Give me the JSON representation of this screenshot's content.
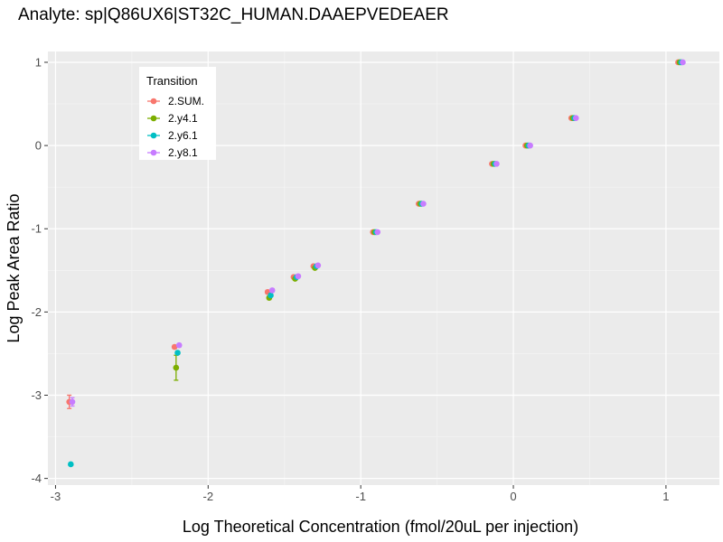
{
  "chart_data": {
    "type": "scatter",
    "title": "Analyte: sp|Q86UX6|ST32C_HUMAN.DAAEPVEDEAER",
    "xlabel": "Log Theoretical Concentration (fmol/20uL per injection)",
    "ylabel": "Log Peak Area Ratio",
    "xlim": [
      -3.05,
      1.35
    ],
    "ylim": [
      -4.08,
      1.13
    ],
    "x_ticks": [
      -3,
      -2,
      -1,
      0,
      1
    ],
    "y_ticks": [
      -4,
      -3,
      -2,
      -1,
      0,
      1
    ],
    "x_tick_labels": [
      "-3",
      "-2",
      "-1",
      "0",
      "1"
    ],
    "y_tick_labels": [
      "-4",
      "-3",
      "-2",
      "-1",
      "0",
      "1"
    ],
    "grid": true,
    "legend": {
      "title": "Transition",
      "position": "top-left"
    },
    "series": [
      {
        "name": "2.SUM.",
        "color": "#F8766D",
        "x": [
          -2.91,
          -2.22,
          -1.61,
          -1.44,
          -1.31,
          -0.92,
          -0.62,
          -0.14,
          0.08,
          0.38,
          1.08
        ],
        "y": [
          -3.08,
          -2.42,
          -1.76,
          -1.58,
          -1.45,
          -1.04,
          -0.7,
          -0.22,
          0.0,
          0.33,
          1.0
        ],
        "yerr": [
          0.08,
          0.02,
          0.02,
          0.01,
          0.01,
          0.01,
          0.01,
          0.01,
          0.01,
          0.01,
          0.0
        ]
      },
      {
        "name": "2.y4.1",
        "color": "#7CAE00",
        "x": [
          -2.21,
          -1.6,
          -1.43,
          -1.3,
          -0.91,
          -0.61,
          -0.13,
          0.09,
          0.39,
          1.09
        ],
        "y": [
          -2.67,
          -1.83,
          -1.6,
          -1.47,
          -1.04,
          -0.7,
          -0.22,
          0.0,
          0.33,
          1.0
        ],
        "yerr": [
          0.15,
          0.02,
          0.01,
          0.01,
          0.01,
          0.01,
          0.01,
          0.01,
          0.01,
          0.0
        ]
      },
      {
        "name": "2.y6.1",
        "color": "#00BFC4",
        "x": [
          -2.9,
          -2.2,
          -1.59,
          -1.42,
          -1.29,
          -0.9,
          -0.6,
          -0.12,
          0.1,
          0.4,
          1.1
        ],
        "y": [
          -3.83,
          -2.49,
          -1.8,
          -1.58,
          -1.45,
          -1.04,
          -0.7,
          -0.22,
          0.0,
          0.33,
          1.0
        ],
        "yerr": [
          0.0,
          0.02,
          0.02,
          0.01,
          0.01,
          0.01,
          0.01,
          0.01,
          0.01,
          0.01,
          0.0
        ]
      },
      {
        "name": "2.y8.1",
        "color": "#C77CFF",
        "x": [
          -2.89,
          -2.19,
          -1.58,
          -1.41,
          -1.28,
          -0.89,
          -0.59,
          -0.11,
          0.11,
          0.41,
          1.11
        ],
        "y": [
          -3.08,
          -2.4,
          -1.74,
          -1.57,
          -1.44,
          -1.04,
          -0.7,
          -0.22,
          0.0,
          0.33,
          1.0
        ],
        "yerr": [
          0.05,
          0.02,
          0.02,
          0.01,
          0.01,
          0.01,
          0.01,
          0.01,
          0.01,
          0.01,
          0.0
        ]
      }
    ]
  }
}
